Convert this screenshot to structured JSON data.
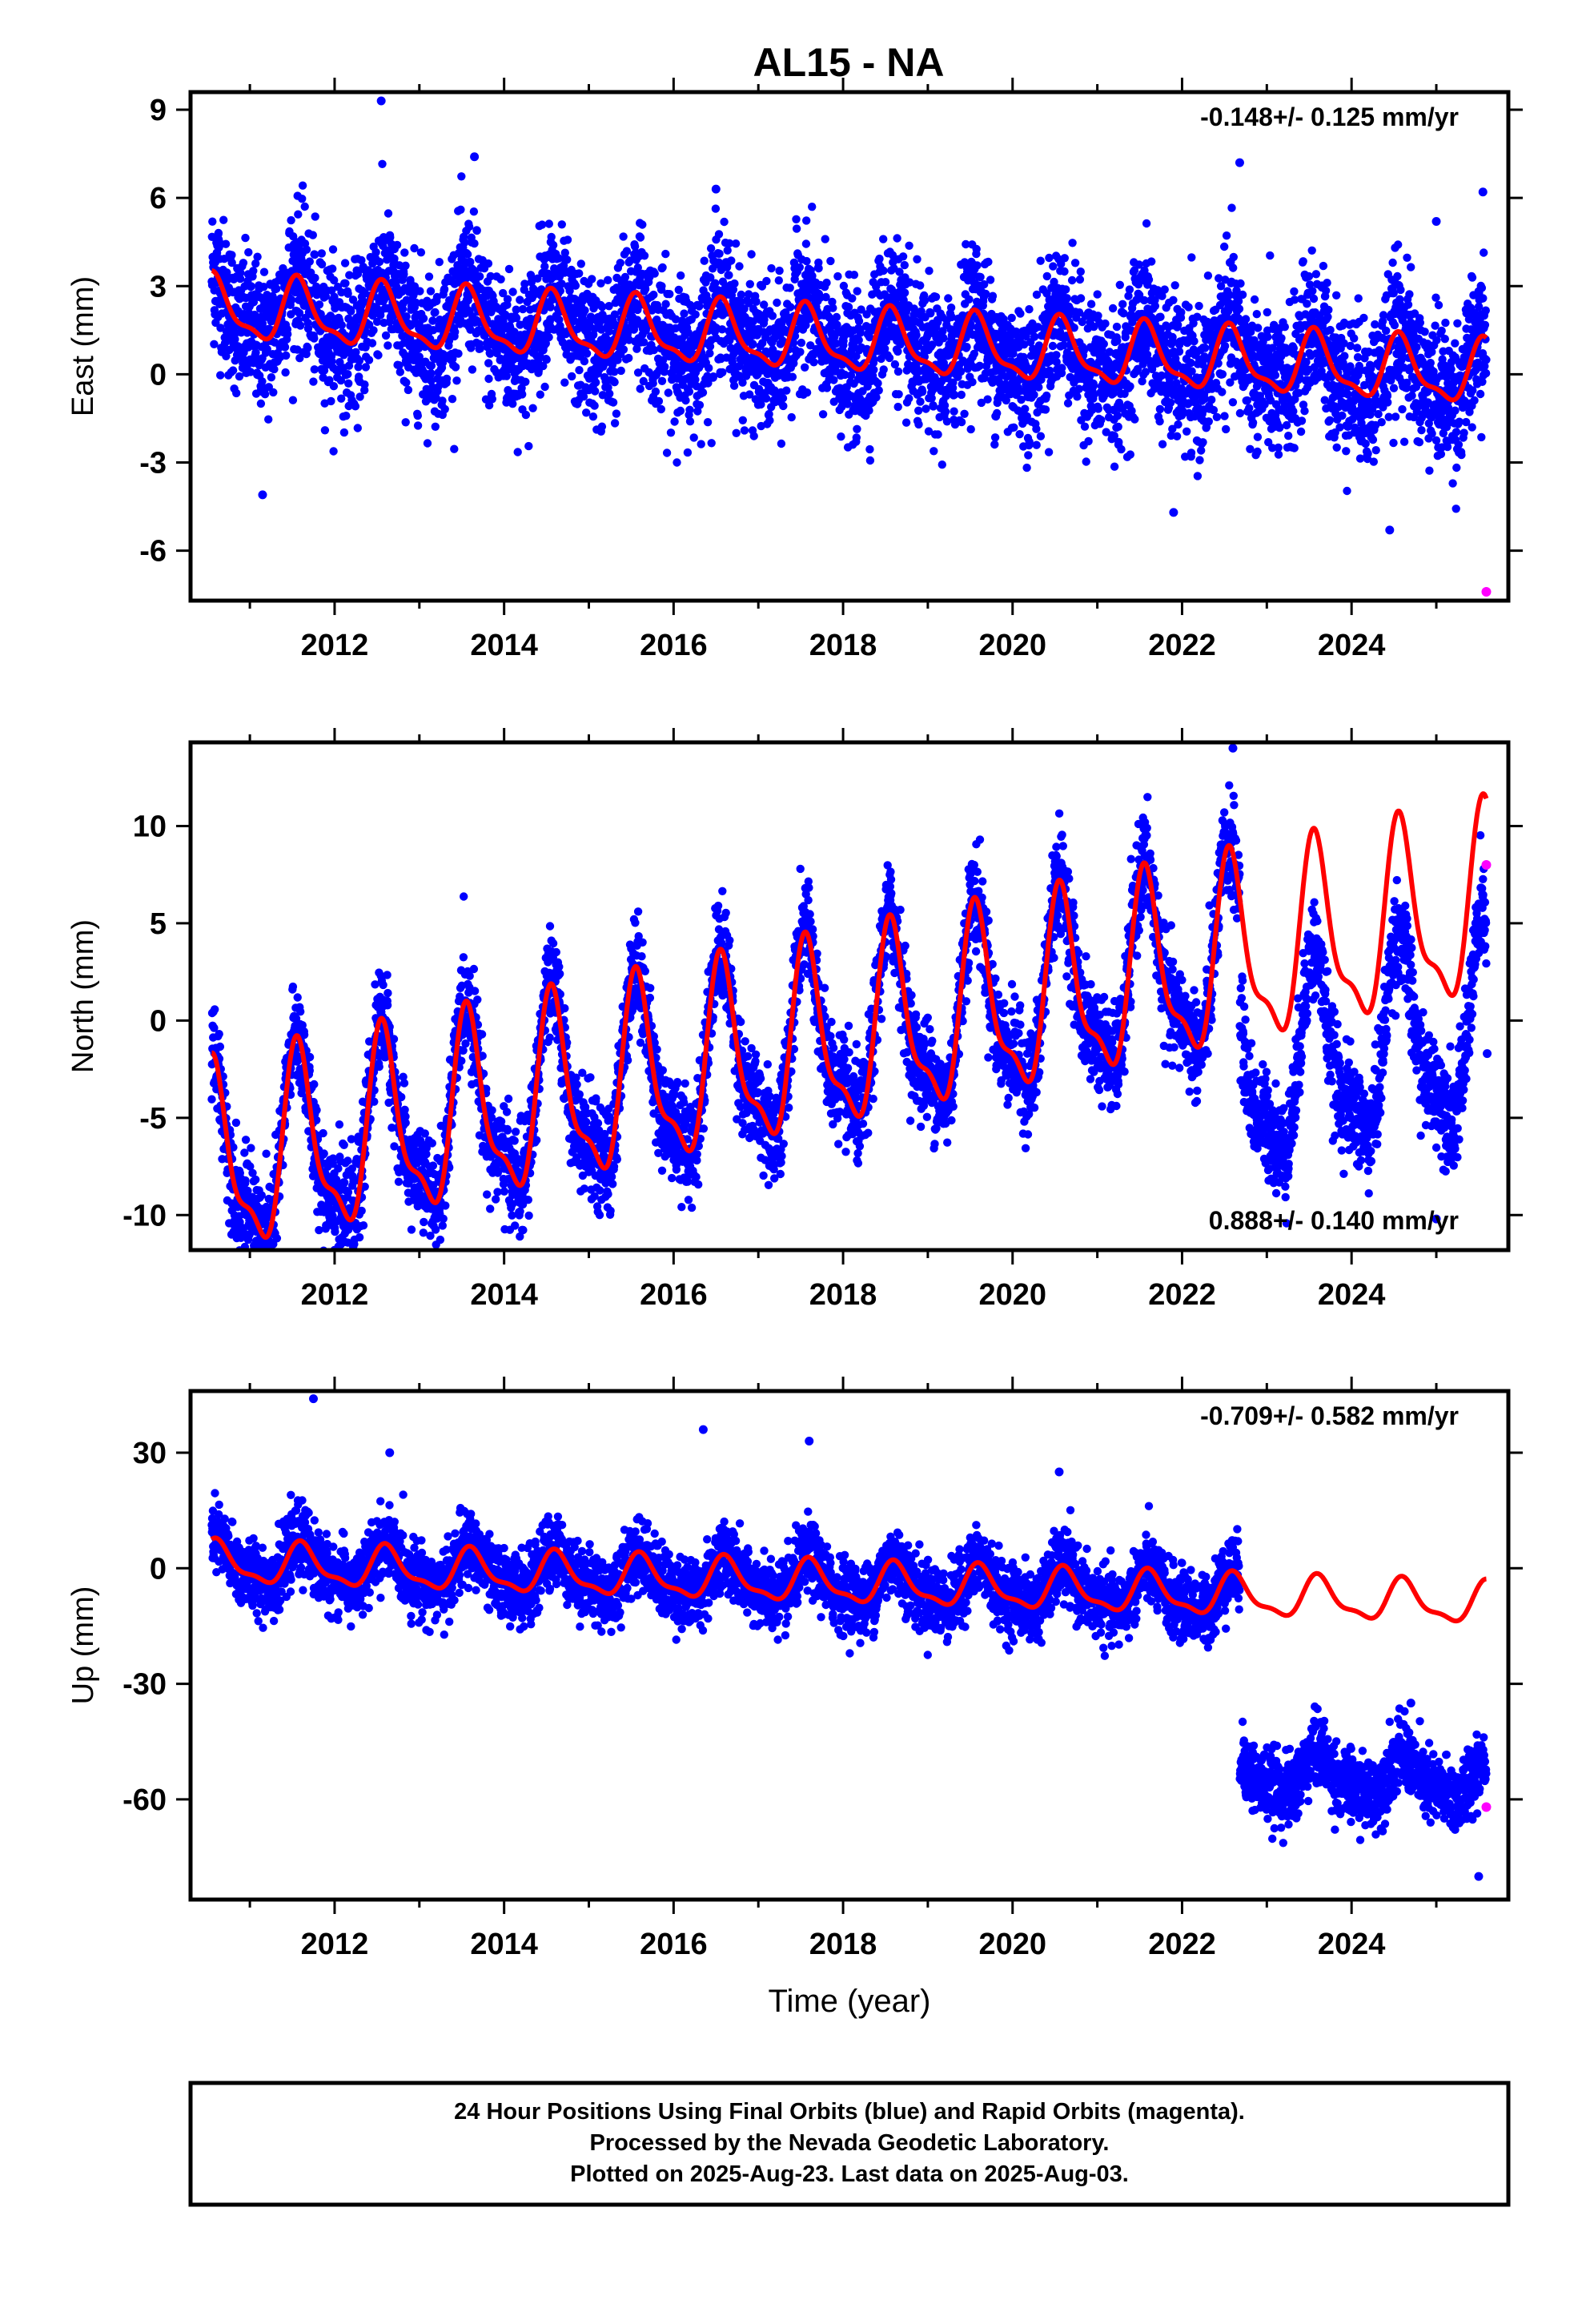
{
  "title": "AL15 - NA",
  "colors": {
    "final": "#0000ff",
    "rapid": "#ff00ff",
    "model": "#ff0000",
    "frame": "#000000"
  },
  "footer": [
    "24 Hour Positions Using Final Orbits (blue) and Rapid Orbits (magenta).",
    "Processed by the Nevada Geodetic Laboratory.",
    "Plotted on 2025-Aug-23. Last data on 2025-Aug-03."
  ],
  "chart_data": [
    {
      "type": "scatter",
      "ylabel": "East (mm)",
      "xlabel": "",
      "rate": "-0.148+/- 0.125 mm/yr",
      "rate_position": "top-right",
      "xlim": [
        2010.3,
        2025.85
      ],
      "ylim": [
        -7.7,
        9.6
      ],
      "xticks": [
        "2012",
        "2014",
        "2016",
        "2018",
        "2020",
        "2022",
        "2024"
      ],
      "yticks": [
        "9",
        "6",
        "3",
        "0",
        "-3",
        "-6"
      ],
      "data_start": 2010.55,
      "data_end": 2025.59,
      "model_end": 2025.59,
      "model": {
        "offset": 1.1,
        "trend": -0.148,
        "amplitude": 1.0,
        "peak_phase": 0.58,
        "gap": null
      },
      "scatter": {
        "spread": 1.2,
        "extra_shift": 0,
        "after": 2030
      },
      "outliers": [
        [
          2012.55,
          9.3
        ],
        [
          2013.65,
          7.4
        ],
        [
          2016.5,
          6.3
        ],
        [
          2022.68,
          7.2
        ],
        [
          2025.0,
          5.2
        ],
        [
          2025.55,
          6.2
        ],
        [
          2011.15,
          -4.1
        ],
        [
          2024.45,
          -5.3
        ],
        [
          2021.9,
          -4.7
        ]
      ],
      "series": [
        {
          "name": "Final Orbits (blue)",
          "points": []
        },
        {
          "name": "Rapid Orbits (magenta)",
          "points": [
            [
              2025.59,
              -7.4
            ]
          ]
        }
      ]
    },
    {
      "type": "scatter",
      "ylabel": "North (mm)",
      "xlabel": "",
      "rate": "0.888+/- 0.140 mm/yr",
      "rate_position": "bottom-right",
      "xlim": [
        2010.3,
        2025.85
      ],
      "ylim": [
        -11.8,
        14.3
      ],
      "xticks": [
        "2012",
        "2014",
        "2016",
        "2018",
        "2020",
        "2022",
        "2024"
      ],
      "yticks": [
        "10",
        "5",
        "0",
        "-5",
        "-10"
      ],
      "data_start": 2010.55,
      "data_end": 2025.59,
      "model_end": 2025.59,
      "model": {
        "offset": -1.0,
        "trend": 0.888,
        "amplitude": 4.5,
        "peak_phase": 0.58,
        "gap": null
      },
      "scatter": {
        "spread": 1.3,
        "extra_shift": -6.2,
        "after": 2022.68
      },
      "outliers": [
        [
          2022.6,
          14.0
        ],
        [
          2010.95,
          -11.0
        ],
        [
          2025.0,
          -10.2
        ],
        [
          2025.6,
          -1.7
        ]
      ],
      "series": [
        {
          "name": "Final Orbits (blue)",
          "points": []
        },
        {
          "name": "Rapid Orbits (magenta)",
          "points": [
            [
              2025.59,
              8.0
            ]
          ]
        }
      ]
    },
    {
      "type": "scatter",
      "ylabel": "Up (mm)",
      "xlabel": "Time (year)",
      "rate": "-0.709+/- 0.582 mm/yr",
      "rate_position": "top-right",
      "xlim": [
        2010.3,
        2025.85
      ],
      "ylim": [
        -86,
        46
      ],
      "xticks": [
        "2012",
        "2014",
        "2016",
        "2018",
        "2020",
        "2022",
        "2024"
      ],
      "yticks": [
        "30",
        "0",
        "-30",
        "-60"
      ],
      "data_start": 2010.55,
      "data_end": 2025.59,
      "model_end": 2025.59,
      "model": {
        "offset": -4.0,
        "trend": -0.709,
        "amplitude": 5.0,
        "peak_phase": 0.62,
        "gap": null
      },
      "scatter": {
        "spread": 4.5,
        "extra_shift": -46,
        "after": 2022.68
      },
      "outliers": [
        [
          2011.75,
          44
        ],
        [
          2012.65,
          30
        ],
        [
          2016.35,
          36
        ],
        [
          2017.6,
          33
        ],
        [
          2020.55,
          25
        ],
        [
          2024.7,
          -35
        ],
        [
          2025.5,
          -80
        ]
      ],
      "series": [
        {
          "name": "Final Orbits (blue)",
          "points": []
        },
        {
          "name": "Rapid Orbits (magenta)",
          "points": [
            [
              2025.59,
              -62
            ]
          ]
        }
      ]
    }
  ]
}
